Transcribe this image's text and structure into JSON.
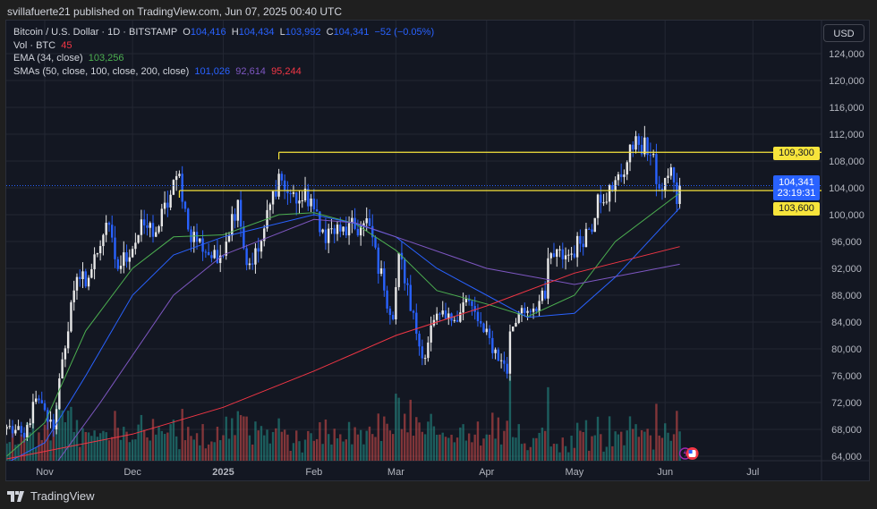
{
  "publisher": "svillafuerte21 published on TradingView.com, Jun 07, 2025 00:40 UTC",
  "legend": {
    "symbol": "Bitcoin / U.S. Dollar · 1D · BITSTAMP",
    "o_label": "O",
    "open": "104,416",
    "h_label": "H",
    "high": "104,434",
    "l_label": "L",
    "low": "103,992",
    "c_label": "C",
    "close": "104,341",
    "change": "−52 (−0.05%)",
    "vol_label": "Vol · BTC",
    "vol": "45",
    "ema_label": "EMA (34, close)",
    "ema": "103,256",
    "sma_label": "SMAs (50, close, 100, close, 200, close)",
    "sma50": "101,026",
    "sma100": "92,614",
    "sma200": "95,244"
  },
  "currency": "USD",
  "price_tags": {
    "resistance": "109,300",
    "last_price": "104,341",
    "countdown": "23:19:31",
    "support": "103,600"
  },
  "footer_brand": "TradingView",
  "colors": {
    "up_candle": "#e8e8e8",
    "down_candle": "#2962ff",
    "vol_up": "#26a69a",
    "vol_down": "#ef5350",
    "ema34": "#4caf50",
    "sma50": "#2962ff",
    "sma100": "#7e57c2",
    "sma200": "#f23645",
    "level_line": "#f7e43b"
  },
  "chart_data": {
    "type": "candlestick",
    "symbol": "BTCUSD",
    "interval": "1D",
    "ylim": [
      62000,
      126000
    ],
    "y_ticks": [
      "64,000",
      "68,000",
      "72,000",
      "76,000",
      "80,000",
      "84,000",
      "88,000",
      "92,000",
      "96,000",
      "100,000",
      "104,000",
      "108,000",
      "112,000",
      "116,000",
      "120,000",
      "124,000"
    ],
    "x_ticks": [
      {
        "label": "Nov",
        "date": "2024-11-01"
      },
      {
        "label": "Dec",
        "date": "2024-12-01"
      },
      {
        "label": "2025",
        "date": "2025-01-01",
        "bold": true
      },
      {
        "label": "Feb",
        "date": "2025-02-01"
      },
      {
        "label": "Mar",
        "date": "2025-03-01"
      },
      {
        "label": "Apr",
        "date": "2025-04-01"
      },
      {
        "label": "May",
        "date": "2025-05-01"
      },
      {
        "label": "Jun",
        "date": "2025-06-01"
      },
      {
        "label": "Jul",
        "date": "2025-07-01"
      }
    ],
    "x_range": [
      "2024-10-19",
      "2025-07-25"
    ],
    "close_keypoints": [
      [
        "2024-10-19",
        68400
      ],
      [
        "2024-10-25",
        66800
      ],
      [
        "2024-10-29",
        72600
      ],
      [
        "2024-11-04",
        68000
      ],
      [
        "2024-11-06",
        75600
      ],
      [
        "2024-11-11",
        88700
      ],
      [
        "2024-11-13",
        90400
      ],
      [
        "2024-11-16",
        90600
      ],
      [
        "2024-11-22",
        98800
      ],
      [
        "2024-11-26",
        91900
      ],
      [
        "2024-12-05",
        98400
      ],
      [
        "2024-12-09",
        97400
      ],
      [
        "2024-12-17",
        106100
      ],
      [
        "2024-12-20",
        97800
      ],
      [
        "2024-12-30",
        92800
      ],
      [
        "2025-01-06",
        102200
      ],
      [
        "2025-01-09",
        92500
      ],
      [
        "2025-01-13",
        94500
      ],
      [
        "2025-01-20",
        106100
      ],
      [
        "2025-01-22",
        103700
      ],
      [
        "2025-01-27",
        102100
      ],
      [
        "2025-01-31",
        102400
      ],
      [
        "2025-02-03",
        97400
      ],
      [
        "2025-02-10",
        97500
      ],
      [
        "2025-02-20",
        98300
      ],
      [
        "2025-02-25",
        88700
      ],
      [
        "2025-02-28",
        84400
      ],
      [
        "2025-03-02",
        94300
      ],
      [
        "2025-03-10",
        78600
      ],
      [
        "2025-03-14",
        84300
      ],
      [
        "2025-03-20",
        84200
      ],
      [
        "2025-03-25",
        87500
      ],
      [
        "2025-03-31",
        82500
      ],
      [
        "2025-04-06",
        78300
      ],
      [
        "2025-04-08",
        76300
      ],
      [
        "2025-04-09",
        82600
      ],
      [
        "2025-04-12",
        85300
      ],
      [
        "2025-04-21",
        87500
      ],
      [
        "2025-04-22",
        93500
      ],
      [
        "2025-04-30",
        94200
      ],
      [
        "2025-05-08",
        99500
      ],
      [
        "2025-05-09",
        103000
      ],
      [
        "2025-05-14",
        103500
      ],
      [
        "2025-05-21",
        109700
      ],
      [
        "2025-05-22",
        111700
      ],
      [
        "2025-05-27",
        108900
      ],
      [
        "2025-05-30",
        103900
      ],
      [
        "2025-06-02",
        105800
      ],
      [
        "2025-06-04",
        104800
      ],
      [
        "2025-06-05",
        101600
      ],
      [
        "2025-06-06",
        104341
      ]
    ],
    "series": [
      {
        "name": "EMA (34, close)",
        "points": [
          [
            "2024-10-19",
            64000
          ],
          [
            "2024-11-01",
            69000
          ],
          [
            "2024-11-15",
            82700
          ],
          [
            "2024-12-01",
            92000
          ],
          [
            "2024-12-15",
            96700
          ],
          [
            "2025-01-01",
            97000
          ],
          [
            "2025-01-20",
            100000
          ],
          [
            "2025-02-01",
            100300
          ],
          [
            "2025-02-15",
            98700
          ],
          [
            "2025-03-01",
            94700
          ],
          [
            "2025-03-15",
            88700
          ],
          [
            "2025-04-01",
            86700
          ],
          [
            "2025-04-15",
            84800
          ],
          [
            "2025-05-01",
            88000
          ],
          [
            "2025-05-15",
            96000
          ],
          [
            "2025-06-06",
            103256
          ]
        ]
      },
      {
        "name": "SMA 50",
        "points": [
          [
            "2024-10-19",
            63000
          ],
          [
            "2024-11-01",
            66000
          ],
          [
            "2024-11-15",
            76000
          ],
          [
            "2024-12-01",
            88000
          ],
          [
            "2024-12-15",
            94000
          ],
          [
            "2025-01-01",
            96700
          ],
          [
            "2025-02-01",
            100000
          ],
          [
            "2025-02-15",
            98700
          ],
          [
            "2025-03-01",
            96700
          ],
          [
            "2025-03-15",
            92000
          ],
          [
            "2025-04-01",
            88000
          ],
          [
            "2025-04-15",
            84700
          ],
          [
            "2025-05-01",
            85300
          ],
          [
            "2025-05-15",
            90700
          ],
          [
            "2025-06-06",
            101026
          ]
        ]
      },
      {
        "name": "SMA 100",
        "points": [
          [
            "2024-11-05",
            63000
          ],
          [
            "2024-11-20",
            72000
          ],
          [
            "2024-12-15",
            88000
          ],
          [
            "2025-01-01",
            94000
          ],
          [
            "2025-02-01",
            99300
          ],
          [
            "2025-02-15",
            98800
          ],
          [
            "2025-03-01",
            96700
          ],
          [
            "2025-04-01",
            92000
          ],
          [
            "2025-05-01",
            89600
          ],
          [
            "2025-06-06",
            92614
          ]
        ]
      },
      {
        "name": "SMA 200",
        "points": [
          [
            "2024-10-19",
            63600
          ],
          [
            "2024-12-01",
            67300
          ],
          [
            "2025-01-01",
            71300
          ],
          [
            "2025-02-01",
            76700
          ],
          [
            "2025-03-01",
            82000
          ],
          [
            "2025-04-01",
            86400
          ],
          [
            "2025-05-01",
            91300
          ],
          [
            "2025-06-06",
            95244
          ]
        ]
      }
    ],
    "horizontal_levels": [
      {
        "price": 109300,
        "from": "2025-01-20",
        "label": "109,300"
      },
      {
        "price": 103600,
        "from": "2024-12-17",
        "label": "103,600"
      }
    ],
    "last_price": 104341
  }
}
